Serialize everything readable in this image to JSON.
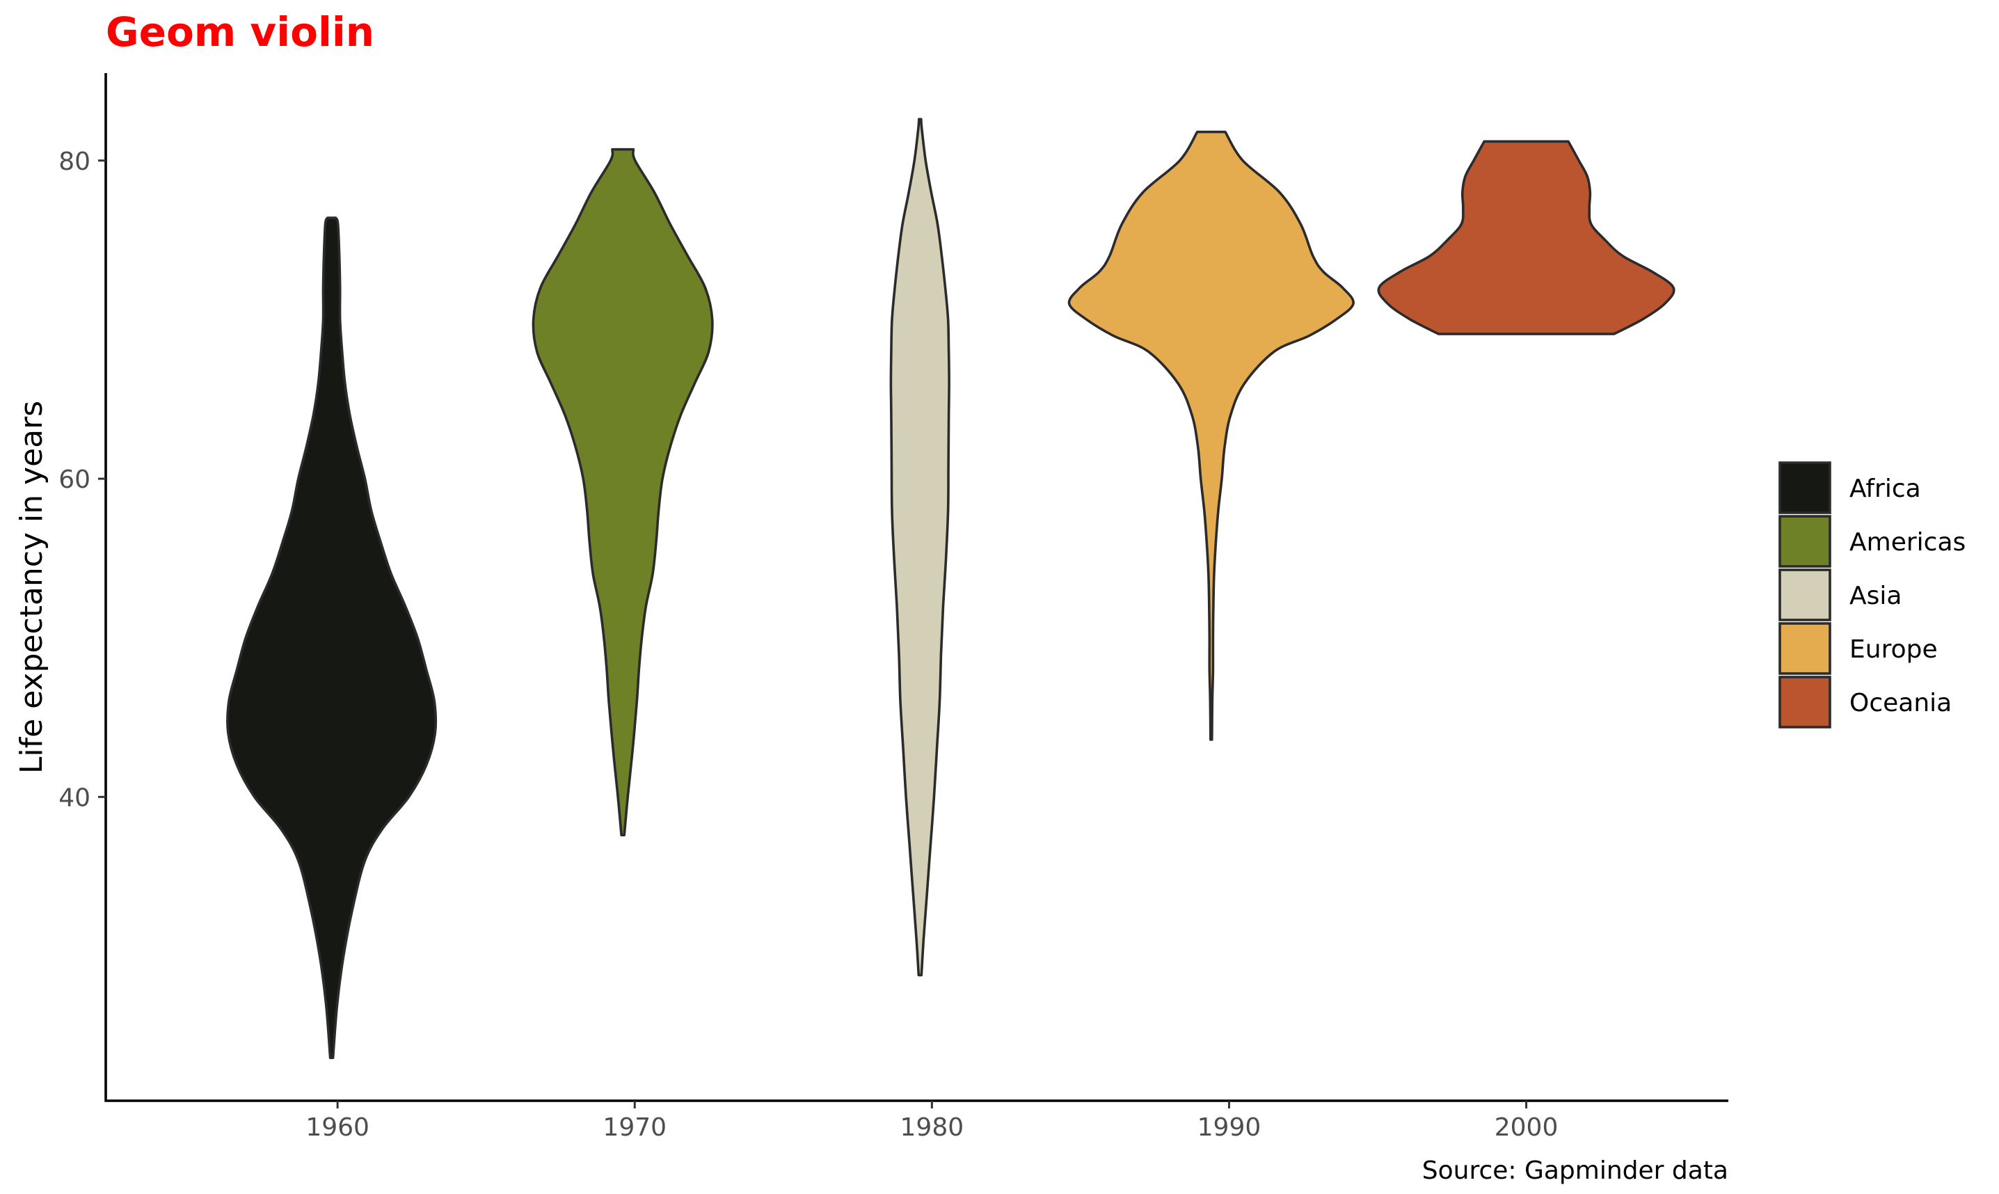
{
  "chart_data": {
    "type": "violin",
    "title": "Geom violin",
    "ylabel": "Life expectancy in years",
    "xlabel": "",
    "caption": "Source: Gapminder data",
    "x_ticks": [
      1960,
      1970,
      1980,
      1990,
      2000
    ],
    "y_ticks": [
      40,
      60,
      80
    ],
    "xlim": [
      1952.2,
      2006.8
    ],
    "ylim": [
      20.9,
      85.5
    ],
    "grid": false,
    "legend_position": "right",
    "series": [
      {
        "name": "Africa",
        "x": 1959.8,
        "color": "#161813",
        "min": 23.6,
        "max": 76.4,
        "profile": [
          [
            23.6,
            0.04
          ],
          [
            27,
            0.16
          ],
          [
            30,
            0.34
          ],
          [
            33,
            0.6
          ],
          [
            36,
            0.95
          ],
          [
            38,
            1.45
          ],
          [
            40,
            2.2
          ],
          [
            42,
            2.7
          ],
          [
            44,
            2.95
          ],
          [
            46,
            2.93
          ],
          [
            48,
            2.7
          ],
          [
            50,
            2.45
          ],
          [
            52,
            2.1
          ],
          [
            54,
            1.7
          ],
          [
            56,
            1.4
          ],
          [
            58,
            1.13
          ],
          [
            60,
            0.95
          ],
          [
            62,
            0.72
          ],
          [
            64,
            0.52
          ],
          [
            66,
            0.38
          ],
          [
            68,
            0.3
          ],
          [
            70,
            0.24
          ],
          [
            72,
            0.24
          ],
          [
            74,
            0.22
          ],
          [
            76,
            0.18
          ],
          [
            76.4,
            0.12
          ]
        ]
      },
      {
        "name": "Americas",
        "x": 1969.6,
        "color": "#6e8126",
        "min": 37.6,
        "max": 80.7,
        "profile": [
          [
            37.6,
            0.04
          ],
          [
            40,
            0.14
          ],
          [
            43,
            0.28
          ],
          [
            46,
            0.4
          ],
          [
            48,
            0.46
          ],
          [
            50,
            0.54
          ],
          [
            52,
            0.66
          ],
          [
            54,
            0.85
          ],
          [
            56,
            0.95
          ],
          [
            58,
            1.02
          ],
          [
            60,
            1.13
          ],
          [
            62,
            1.35
          ],
          [
            64,
            1.65
          ],
          [
            66,
            2.05
          ],
          [
            68,
            2.45
          ],
          [
            70,
            2.55
          ],
          [
            72,
            2.35
          ],
          [
            74,
            1.85
          ],
          [
            76,
            1.35
          ],
          [
            78,
            0.9
          ],
          [
            80,
            0.35
          ],
          [
            80.7,
            0.3
          ]
        ]
      },
      {
        "name": "Asia",
        "x": 1979.6,
        "color": "#d4cfb7",
        "min": 28.8,
        "max": 82.6,
        "profile": [
          [
            28.8,
            0.04
          ],
          [
            31,
            0.1
          ],
          [
            34,
            0.2
          ],
          [
            37,
            0.3
          ],
          [
            40,
            0.4
          ],
          [
            43,
            0.48
          ],
          [
            46,
            0.56
          ],
          [
            49,
            0.6
          ],
          [
            52,
            0.66
          ],
          [
            55,
            0.74
          ],
          [
            58,
            0.8
          ],
          [
            61,
            0.81
          ],
          [
            64,
            0.82
          ],
          [
            66,
            0.83
          ],
          [
            68,
            0.82
          ],
          [
            70,
            0.8
          ],
          [
            72,
            0.72
          ],
          [
            74,
            0.62
          ],
          [
            76,
            0.5
          ],
          [
            78,
            0.32
          ],
          [
            80,
            0.16
          ],
          [
            82,
            0.05
          ],
          [
            82.6,
            0.03
          ]
        ]
      },
      {
        "name": "Europe",
        "x": 1989.4,
        "color": "#e4ab4f",
        "min": 43.6,
        "max": 81.8,
        "profile": [
          [
            43.6,
            0.02
          ],
          [
            46,
            0.03
          ],
          [
            48,
            0.05
          ],
          [
            50,
            0.05
          ],
          [
            52,
            0.06
          ],
          [
            54,
            0.08
          ],
          [
            56,
            0.13
          ],
          [
            58,
            0.2
          ],
          [
            60,
            0.3
          ],
          [
            62,
            0.38
          ],
          [
            64,
            0.55
          ],
          [
            66,
            0.95
          ],
          [
            68,
            1.8
          ],
          [
            69,
            2.8
          ],
          [
            70,
            3.55
          ],
          [
            71,
            4.05
          ],
          [
            72,
            3.75
          ],
          [
            73,
            3.2
          ],
          [
            74,
            2.9
          ],
          [
            76,
            2.55
          ],
          [
            78,
            1.95
          ],
          [
            80,
            0.9
          ],
          [
            81.8,
            0.4
          ]
        ]
      },
      {
        "name": "Oceania",
        "x": 2000,
        "color": "#bb5530",
        "min": 69.1,
        "max": 81.2,
        "profile": [
          [
            69.1,
            2.5
          ],
          [
            70,
            3.3
          ],
          [
            71,
            3.95
          ],
          [
            72,
            4.2
          ],
          [
            73,
            3.6
          ],
          [
            74,
            2.75
          ],
          [
            75,
            2.25
          ],
          [
            76,
            1.85
          ],
          [
            77,
            1.8
          ],
          [
            78,
            1.82
          ],
          [
            79,
            1.74
          ],
          [
            80,
            1.5
          ],
          [
            81.2,
            1.2
          ]
        ]
      }
    ]
  }
}
